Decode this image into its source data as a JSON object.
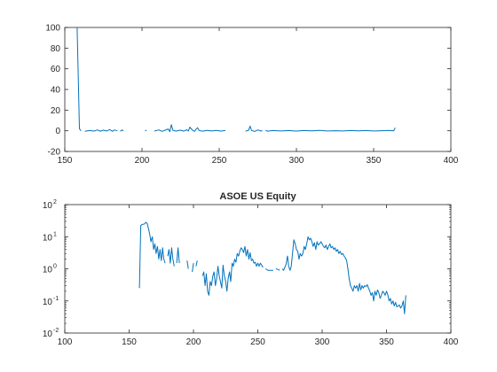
{
  "chart_data": [
    {
      "type": "line",
      "title": "",
      "xlabel": "",
      "ylabel": "",
      "xlim": [
        150,
        400
      ],
      "ylim": [
        -20,
        100
      ],
      "yscale": "linear",
      "grid": false,
      "color": "#0072bd",
      "x_ticks": [
        "150",
        "200",
        "250",
        "300",
        "350",
        "400"
      ],
      "y_ticks": [
        "-20",
        "0",
        "20",
        "40",
        "60",
        "80",
        "100"
      ],
      "segments": [
        [
          [
            158,
            100
          ],
          [
            159.5,
            2
          ],
          [
            160.5,
            0
          ]
        ],
        [
          [
            163,
            -0.5
          ],
          [
            166,
            0.2
          ],
          [
            169,
            -0.3
          ],
          [
            171,
            0.8
          ],
          [
            173,
            -0.4
          ],
          [
            175,
            0.6
          ],
          [
            177,
            -0.2
          ],
          [
            179,
            1.2
          ],
          [
            181,
            -0.5
          ],
          [
            182,
            0.8
          ],
          [
            184,
            0
          ]
        ],
        [
          [
            186,
            -0.5
          ],
          [
            187,
            0.8
          ],
          [
            188,
            -0.2
          ]
        ],
        [
          [
            202,
            0
          ],
          [
            203,
            0.6
          ]
        ],
        [
          [
            208,
            -0.3
          ],
          [
            211,
            0.8
          ],
          [
            213,
            -0.5
          ],
          [
            215,
            0.6
          ],
          [
            217,
            1.8
          ],
          [
            218,
            -0.8
          ],
          [
            219,
            6
          ],
          [
            220,
            0.5
          ],
          [
            222,
            -0.3
          ],
          [
            225,
            0.6
          ],
          [
            227,
            -0.4
          ],
          [
            229,
            1
          ],
          [
            230,
            -0.3
          ],
          [
            231,
            3.5
          ],
          [
            233,
            0.2
          ],
          [
            234,
            -0.5
          ],
          [
            235,
            1.5
          ],
          [
            236,
            3
          ],
          [
            237,
            0.3
          ],
          [
            239,
            -0.4
          ],
          [
            242,
            0.3
          ],
          [
            245,
            -0.2
          ],
          [
            248,
            0.4
          ],
          [
            251,
            -0.3
          ],
          [
            254,
            0.2
          ]
        ],
        [
          [
            267,
            -0.4
          ],
          [
            269,
            0.5
          ],
          [
            270,
            4.5
          ],
          [
            271,
            0.3
          ],
          [
            273,
            -0.6
          ],
          [
            275,
            0.8
          ],
          [
            277,
            -0.2
          ],
          [
            278,
            0.1
          ]
        ],
        [
          [
            280,
            0.6
          ],
          [
            281,
            -0.4
          ],
          [
            285,
            0.2
          ],
          [
            290,
            -0.2
          ],
          [
            295,
            0.2
          ],
          [
            300,
            -0.3
          ],
          [
            305,
            0.2
          ],
          [
            310,
            -0.1
          ],
          [
            315,
            0.3
          ],
          [
            320,
            -0.2
          ],
          [
            325,
            0.1
          ],
          [
            330,
            -0.2
          ],
          [
            335,
            0.2
          ],
          [
            340,
            -0.1
          ],
          [
            345,
            0.2
          ],
          [
            350,
            -0.2
          ],
          [
            355,
            0.1
          ],
          [
            360,
            0.3
          ],
          [
            363,
            0
          ],
          [
            364,
            3
          ]
        ]
      ]
    },
    {
      "type": "line",
      "title": "ASOE US Equity",
      "xlabel": "",
      "ylabel": "",
      "xlim": [
        100,
        400
      ],
      "ylim": [
        0.01,
        100
      ],
      "yscale": "log",
      "grid": false,
      "color": "#0072bd",
      "x_ticks": [
        "100",
        "150",
        "200",
        "250",
        "300",
        "350",
        "400"
      ],
      "y_ticks": [
        {
          "base": "10",
          "exp": "-2",
          "value": 0.01
        },
        {
          "base": "10",
          "exp": "-1",
          "value": 0.1
        },
        {
          "base": "10",
          "exp": "0",
          "value": 1
        },
        {
          "base": "10",
          "exp": "1",
          "value": 10
        },
        {
          "base": "10",
          "exp": "2",
          "value": 100
        }
      ],
      "segments": [
        [
          [
            158,
            0.25
          ],
          [
            159,
            22
          ],
          [
            160,
            24
          ],
          [
            162,
            25
          ],
          [
            163,
            28
          ],
          [
            164,
            26
          ],
          [
            165,
            18
          ],
          [
            166,
            12
          ],
          [
            167,
            7
          ],
          [
            168,
            10
          ],
          [
            169,
            4
          ],
          [
            170,
            6
          ],
          [
            171,
            3
          ],
          [
            172,
            5
          ],
          [
            173,
            2
          ],
          [
            174,
            4
          ],
          [
            175,
            1.8
          ],
          [
            176,
            4.5
          ],
          [
            177,
            2
          ],
          [
            178,
            1.5
          ]
        ],
        [
          [
            180,
            2.5
          ],
          [
            181,
            4
          ],
          [
            182,
            1.5
          ],
          [
            183,
            4.5
          ],
          [
            184,
            2
          ],
          [
            185,
            1.2
          ]
        ],
        [
          [
            187,
            1.5
          ],
          [
            188,
            4.5
          ],
          [
            189,
            1.5
          ]
        ],
        [
          [
            195,
            1.8
          ],
          [
            196,
            1
          ]
        ],
        [
          [
            199,
            0.8
          ],
          [
            200,
            1.5
          ]
        ],
        [
          [
            202,
            1.2
          ],
          [
            203,
            1.8
          ]
        ],
        [
          [
            207,
            0.6
          ],
          [
            208,
            0.8
          ],
          [
            209,
            0.3
          ],
          [
            210,
            0.7
          ],
          [
            211,
            0.2
          ],
          [
            212,
            0.15
          ],
          [
            213,
            0.4
          ],
          [
            214,
            0.3
          ],
          [
            215,
            0.6
          ],
          [
            216,
            0.8
          ],
          [
            217,
            0.3
          ],
          [
            218,
            0.5
          ],
          [
            219,
            1.2
          ],
          [
            220,
            0.6
          ],
          [
            221,
            0.4
          ],
          [
            222,
            0.25
          ],
          [
            223,
            1.3
          ],
          [
            224,
            0.6
          ],
          [
            225,
            0.4
          ],
          [
            226,
            0.2
          ],
          [
            227,
            0.5
          ],
          [
            228,
            0.8
          ],
          [
            229,
            0.4
          ],
          [
            230,
            1.5
          ],
          [
            231,
            1.2
          ],
          [
            232,
            2
          ],
          [
            233,
            1.6
          ],
          [
            234,
            3
          ],
          [
            235,
            2.5
          ],
          [
            236,
            3.5
          ],
          [
            237,
            4.5
          ],
          [
            238,
            4
          ],
          [
            239,
            3.2
          ],
          [
            240,
            5
          ],
          [
            241,
            2.5
          ],
          [
            242,
            4
          ],
          [
            243,
            2
          ],
          [
            244,
            3.2
          ],
          [
            245,
            1.8
          ],
          [
            246,
            2
          ],
          [
            247,
            1.5
          ],
          [
            248,
            1.6
          ],
          [
            249,
            1.2
          ],
          [
            250,
            1.5
          ],
          [
            251,
            1.2
          ],
          [
            252,
            1.5
          ],
          [
            253,
            1.3
          ],
          [
            254,
            1.1
          ]
        ],
        [
          [
            256,
            1
          ],
          [
            258,
            0.9
          ],
          [
            260,
            0.9
          ],
          [
            262,
            0.9
          ]
        ],
        [
          [
            264,
            1
          ],
          [
            266,
            0.95
          ],
          [
            267,
            0.9
          ]
        ],
        [
          [
            269,
            1
          ],
          [
            270,
            0.9
          ],
          [
            271,
            1.1
          ],
          [
            272,
            1.4
          ],
          [
            273,
            2.5
          ],
          [
            274,
            1.2
          ],
          [
            275,
            0.9
          ],
          [
            276,
            1.2
          ],
          [
            277,
            3
          ],
          [
            278,
            8
          ],
          [
            279,
            6
          ],
          [
            280,
            4
          ],
          [
            281,
            3.5
          ],
          [
            282,
            2
          ],
          [
            283,
            3
          ],
          [
            284,
            2.5
          ],
          [
            285,
            3
          ],
          [
            286,
            5
          ],
          [
            287,
            4
          ],
          [
            288,
            6
          ],
          [
            289,
            10
          ],
          [
            290,
            8
          ],
          [
            291,
            9
          ],
          [
            292,
            7
          ],
          [
            293,
            5
          ],
          [
            294,
            6.5
          ],
          [
            295,
            4
          ],
          [
            296,
            7
          ],
          [
            297,
            5.5
          ],
          [
            298,
            6
          ],
          [
            299,
            7
          ],
          [
            300,
            6
          ],
          [
            301,
            5
          ],
          [
            302,
            4.5
          ],
          [
            303,
            5.5
          ],
          [
            304,
            4
          ],
          [
            305,
            5
          ],
          [
            306,
            6
          ],
          [
            307,
            4.5
          ],
          [
            308,
            5
          ],
          [
            309,
            4
          ],
          [
            310,
            4.5
          ],
          [
            311,
            3.5
          ],
          [
            312,
            4
          ],
          [
            313,
            3
          ],
          [
            314,
            3.5
          ],
          [
            315,
            2.8
          ],
          [
            316,
            3
          ],
          [
            317,
            2.5
          ],
          [
            318,
            2.2
          ],
          [
            319,
            1.8
          ],
          [
            320,
            1
          ],
          [
            321,
            0.5
          ],
          [
            322,
            0.3
          ],
          [
            323,
            0.25
          ],
          [
            324,
            0.2
          ],
          [
            325,
            0.3
          ],
          [
            326,
            0.25
          ],
          [
            327,
            0.3
          ],
          [
            328,
            0.2
          ],
          [
            329,
            0.35
          ],
          [
            330,
            0.22
          ],
          [
            331,
            0.3
          ],
          [
            332,
            0.25
          ],
          [
            333,
            0.3
          ],
          [
            334,
            0.28
          ],
          [
            335,
            0.32
          ],
          [
            336,
            0.25
          ],
          [
            337,
            0.2
          ],
          [
            338,
            0.15
          ],
          [
            339,
            0.18
          ],
          [
            340,
            0.1
          ],
          [
            341,
            0.2
          ],
          [
            342,
            0.15
          ],
          [
            343,
            0.22
          ],
          [
            344,
            0.18
          ],
          [
            345,
            0.12
          ],
          [
            346,
            0.15
          ],
          [
            347,
            0.2
          ],
          [
            348,
            0.18
          ],
          [
            349,
            0.15
          ],
          [
            350,
            0.2
          ],
          [
            351,
            0.16
          ],
          [
            352,
            0.1
          ],
          [
            353,
            0.12
          ],
          [
            354,
            0.08
          ],
          [
            355,
            0.1
          ],
          [
            356,
            0.07
          ],
          [
            357,
            0.09
          ],
          [
            358,
            0.065
          ],
          [
            359,
            0.07
          ],
          [
            360,
            0.075
          ],
          [
            361,
            0.06
          ],
          [
            362,
            0.07
          ],
          [
            363,
            0.1
          ],
          [
            364,
            0.04
          ],
          [
            365,
            0.15
          ]
        ]
      ]
    }
  ]
}
